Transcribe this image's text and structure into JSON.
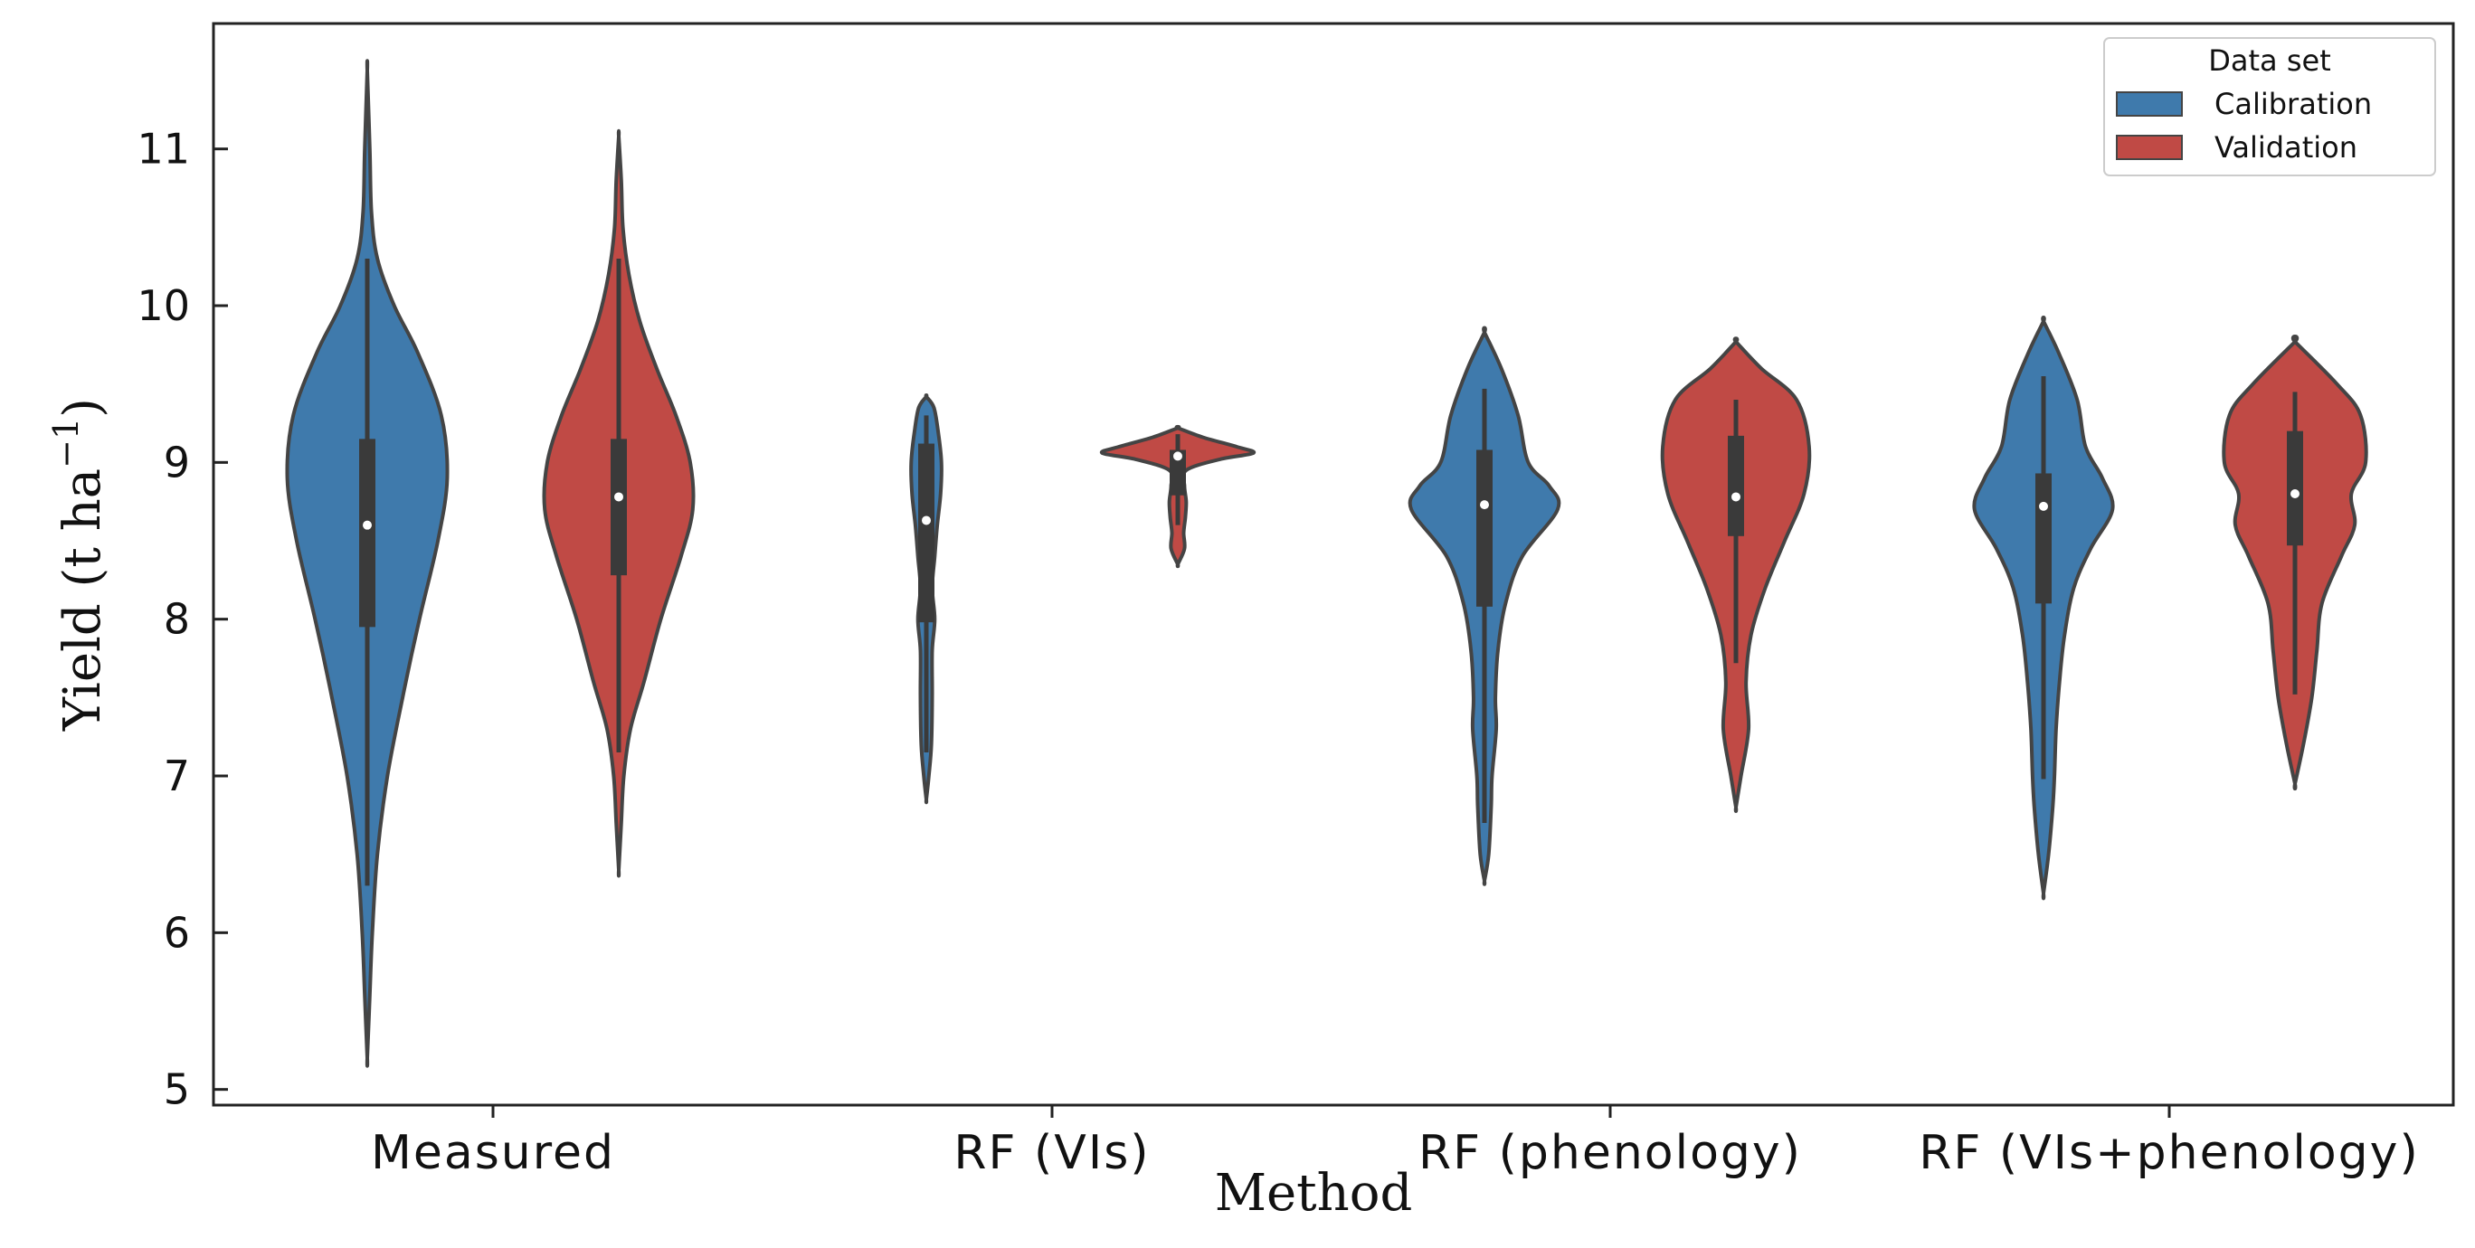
{
  "chart_data": {
    "type": "violin",
    "xlabel": "Method",
    "ylabel": "Yield (t ha",
    "ylabel_superscript": "−1",
    "ylabel_close": ")",
    "ylim": [
      4.9,
      11.8
    ],
    "yticks": [
      5,
      6,
      7,
      8,
      9,
      10,
      11
    ],
    "categories": [
      "Measured",
      "RF (VIs)",
      "RF (phenology)",
      "RF (VIs+phenology)"
    ],
    "legend": {
      "title": "Data set",
      "position": "top-right",
      "entries": [
        {
          "name": "Calibration",
          "color": "#3f7aac"
        },
        {
          "name": "Validation",
          "color": "#c04a45"
        }
      ]
    },
    "series": [
      {
        "name": "Calibration",
        "color": "#3f7aac",
        "violins": [
          {
            "category": "Measured",
            "min": 5.2,
            "max": 11.5,
            "median": 8.6,
            "q1": 7.95,
            "q3": 9.15,
            "whisker_low": 6.3,
            "whisker_high": 10.3,
            "profile": [
              [
                5.2,
                0.0
              ],
              [
                5.6,
                0.03
              ],
              [
                6.0,
                0.06
              ],
              [
                6.5,
                0.12
              ],
              [
                7.0,
                0.24
              ],
              [
                7.5,
                0.42
              ],
              [
                8.0,
                0.62
              ],
              [
                8.5,
                0.84
              ],
              [
                8.9,
                0.95
              ],
              [
                9.3,
                0.88
              ],
              [
                9.7,
                0.6
              ],
              [
                10.0,
                0.32
              ],
              [
                10.3,
                0.12
              ],
              [
                10.6,
                0.05
              ],
              [
                11.0,
                0.03
              ],
              [
                11.5,
                0.0
              ]
            ]
          },
          {
            "category": "RF (VIs)",
            "min": 6.85,
            "max": 9.42,
            "median": 8.63,
            "q1": 7.98,
            "q3": 9.12,
            "whisker_low": 7.15,
            "whisker_high": 9.3,
            "profile": [
              [
                6.85,
                0.0
              ],
              [
                7.0,
                0.03
              ],
              [
                7.2,
                0.06
              ],
              [
                7.5,
                0.07
              ],
              [
                7.8,
                0.07
              ],
              [
                8.0,
                0.1
              ],
              [
                8.2,
                0.07
              ],
              [
                8.4,
                0.1
              ],
              [
                8.6,
                0.13
              ],
              [
                8.8,
                0.17
              ],
              [
                9.0,
                0.18
              ],
              [
                9.2,
                0.14
              ],
              [
                9.35,
                0.09
              ],
              [
                9.42,
                0.0
              ]
            ]
          },
          {
            "category": "RF (phenology)",
            "min": 6.33,
            "max": 9.83,
            "median": 8.73,
            "q1": 8.08,
            "q3": 9.08,
            "whisker_low": 6.7,
            "whisker_high": 9.47,
            "profile": [
              [
                6.33,
                0.0
              ],
              [
                6.5,
                0.05
              ],
              [
                6.8,
                0.08
              ],
              [
                7.0,
                0.09
              ],
              [
                7.3,
                0.14
              ],
              [
                7.5,
                0.13
              ],
              [
                7.8,
                0.16
              ],
              [
                8.1,
                0.25
              ],
              [
                8.4,
                0.45
              ],
              [
                8.7,
                0.87
              ],
              [
                8.85,
                0.77
              ],
              [
                9.0,
                0.52
              ],
              [
                9.3,
                0.4
              ],
              [
                9.6,
                0.2
              ],
              [
                9.83,
                0.0
              ]
            ]
          },
          {
            "category": "RF (VIs+phenology)",
            "min": 6.25,
            "max": 9.9,
            "median": 8.72,
            "q1": 8.1,
            "q3": 8.93,
            "whisker_low": 6.98,
            "whisker_high": 9.55,
            "profile": [
              [
                6.25,
                0.0
              ],
              [
                6.5,
                0.06
              ],
              [
                6.8,
                0.11
              ],
              [
                7.0,
                0.13
              ],
              [
                7.3,
                0.15
              ],
              [
                7.6,
                0.19
              ],
              [
                7.9,
                0.25
              ],
              [
                8.2,
                0.36
              ],
              [
                8.45,
                0.56
              ],
              [
                8.7,
                0.82
              ],
              [
                8.9,
                0.7
              ],
              [
                9.1,
                0.5
              ],
              [
                9.4,
                0.4
              ],
              [
                9.7,
                0.18
              ],
              [
                9.9,
                0.0
              ]
            ]
          }
        ]
      },
      {
        "name": "Validation",
        "color": "#c04a45",
        "violins": [
          {
            "category": "Measured",
            "min": 6.4,
            "max": 11.08,
            "median": 8.78,
            "q1": 8.28,
            "q3": 9.15,
            "whisker_low": 7.15,
            "whisker_high": 10.3,
            "profile": [
              [
                6.4,
                0.0
              ],
              [
                6.7,
                0.03
              ],
              [
                7.0,
                0.06
              ],
              [
                7.3,
                0.14
              ],
              [
                7.6,
                0.3
              ],
              [
                8.0,
                0.5
              ],
              [
                8.4,
                0.74
              ],
              [
                8.7,
                0.88
              ],
              [
                9.0,
                0.85
              ],
              [
                9.3,
                0.68
              ],
              [
                9.6,
                0.45
              ],
              [
                9.9,
                0.25
              ],
              [
                10.2,
                0.12
              ],
              [
                10.5,
                0.05
              ],
              [
                10.8,
                0.03
              ],
              [
                11.08,
                0.0
              ]
            ]
          },
          {
            "category": "RF (VIs)",
            "min": 8.35,
            "max": 9.22,
            "median": 9.04,
            "q1": 8.79,
            "q3": 9.08,
            "whisker_low": 8.6,
            "whisker_high": 9.18,
            "profile": [
              [
                8.35,
                0.0
              ],
              [
                8.45,
                0.08
              ],
              [
                8.55,
                0.07
              ],
              [
                8.65,
                0.09
              ],
              [
                8.75,
                0.1
              ],
              [
                8.85,
                0.08
              ],
              [
                8.95,
                0.1
              ],
              [
                9.02,
                0.5
              ],
              [
                9.06,
                0.9
              ],
              [
                9.1,
                0.7
              ],
              [
                9.16,
                0.3
              ],
              [
                9.22,
                0.0
              ]
            ]
          },
          {
            "category": "RF (phenology)",
            "min": 6.8,
            "max": 9.77,
            "median": 8.78,
            "q1": 8.53,
            "q3": 9.17,
            "whisker_low": 7.72,
            "whisker_high": 9.4,
            "profile": [
              [
                6.8,
                0.0
              ],
              [
                7.0,
                0.06
              ],
              [
                7.3,
                0.15
              ],
              [
                7.6,
                0.12
              ],
              [
                7.9,
                0.18
              ],
              [
                8.2,
                0.35
              ],
              [
                8.5,
                0.58
              ],
              [
                8.8,
                0.81
              ],
              [
                9.1,
                0.87
              ],
              [
                9.4,
                0.72
              ],
              [
                9.6,
                0.3
              ],
              [
                9.77,
                0.0
              ]
            ]
          },
          {
            "category": "RF (VIs+phenology)",
            "min": 6.95,
            "max": 9.77,
            "median": 8.8,
            "q1": 8.47,
            "q3": 9.2,
            "whisker_low": 7.52,
            "whisker_high": 9.45,
            "profile": [
              [
                6.95,
                0.0
              ],
              [
                7.2,
                0.1
              ],
              [
                7.5,
                0.2
              ],
              [
                7.8,
                0.26
              ],
              [
                8.1,
                0.32
              ],
              [
                8.4,
                0.55
              ],
              [
                8.6,
                0.71
              ],
              [
                8.8,
                0.67
              ],
              [
                9.0,
                0.84
              ],
              [
                9.3,
                0.78
              ],
              [
                9.5,
                0.5
              ],
              [
                9.77,
                0.0
              ]
            ]
          }
        ]
      }
    ]
  }
}
